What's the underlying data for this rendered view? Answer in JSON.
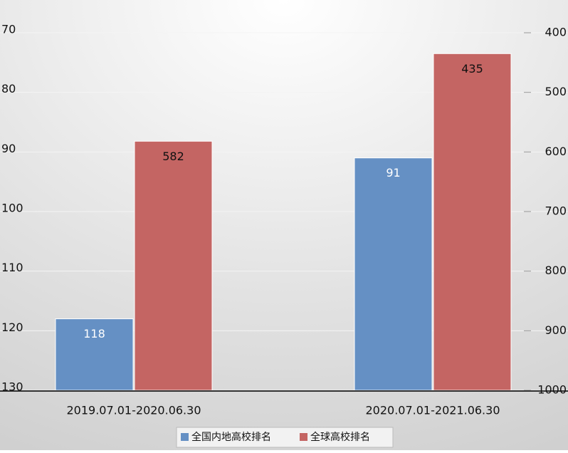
{
  "chart_data": {
    "type": "bar",
    "categories": [
      "2019.07.01-2020.06.30",
      "2020.07.01-2021.06.30"
    ],
    "series": [
      {
        "name": "全国内地高校排名",
        "color": "#6590c4",
        "label_color": "#ffffff",
        "values": [
          118,
          91
        ]
      },
      {
        "name": "全球高校排名",
        "color": "#c46563",
        "label_color": "#111111",
        "axis": "y2",
        "values": [
          582,
          435
        ]
      }
    ],
    "ylim": [
      130,
      70
    ],
    "yticks": [
      70,
      80,
      90,
      100,
      110,
      120,
      130
    ],
    "y2lim": [
      1000,
      400
    ],
    "y2ticks": [
      400,
      500,
      600,
      700,
      800,
      900,
      1000
    ],
    "grid": true,
    "legend": "bottom"
  }
}
